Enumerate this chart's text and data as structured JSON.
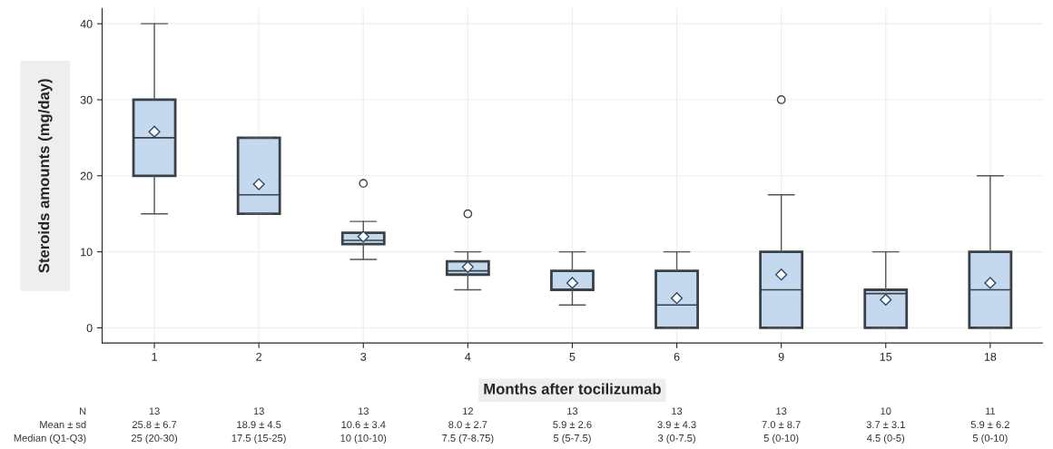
{
  "chart_data": {
    "type": "box",
    "xlabel": "Months after tocilizumab",
    "ylabel": "Steroids amounts (mg/day)",
    "categories": [
      "1",
      "2",
      "3",
      "4",
      "5",
      "6",
      "9",
      "15",
      "18"
    ],
    "color": "#c5d9ee",
    "boxes": [
      {
        "low": 15,
        "q1": 20,
        "median": 25,
        "q3": 30,
        "high": 40,
        "mean": 25.8
      },
      {
        "low": 15,
        "q1": 15,
        "median": 17.5,
        "q3": 25,
        "high": 25,
        "mean": 18.9
      },
      {
        "low": 9,
        "q1": 11,
        "median": 11.5,
        "q3": 12.5,
        "high": 14,
        "mean": 12,
        "outliers": [
          19
        ]
      },
      {
        "low": 5,
        "q1": 7,
        "median": 7.5,
        "q3": 8.75,
        "high": 10,
        "mean": 8,
        "outliers": [
          15
        ]
      },
      {
        "low": 3,
        "q1": 5,
        "median": 5,
        "q3": 7.5,
        "high": 10,
        "mean": 5.9
      },
      {
        "low": 0,
        "q1": 0,
        "median": 3,
        "q3": 7.5,
        "high": 10,
        "mean": 3.9
      },
      {
        "low": 0,
        "q1": 0,
        "median": 5,
        "q3": 10,
        "high": 17.5,
        "mean": 7.0,
        "outliers": [
          30
        ]
      },
      {
        "low": 0,
        "q1": 0,
        "median": 4.5,
        "q3": 5,
        "high": 10,
        "mean": 3.7
      },
      {
        "low": 0,
        "q1": 0,
        "median": 5,
        "q3": 10,
        "high": 20,
        "mean": 5.9
      }
    ],
    "ylim": [
      -2,
      42
    ],
    "yticks": [
      0,
      10,
      20,
      30,
      40
    ],
    "grid": true,
    "annotations": [
      "N",
      "13",
      "13",
      "13",
      "12",
      "13",
      "13",
      "13",
      "10",
      "11",
      "Mean ± sd",
      "25.8 ± 6.7",
      "18.9 ± 4.5",
      "10.6 ± 3.4",
      "8.0 ± 2.7",
      "5.9 ± 2.6",
      "3.9 ± 4.3",
      "7.0 ± 8.7",
      "3.7 ± 3.1",
      "5.9 ± 6.2",
      "Median (Q1-Q3)",
      "25 (20-30)",
      "17.5 (15-25)",
      "10 (10-10)",
      "7.5 (7-8.75)",
      "5 (5-7.5)",
      "3 (0-7.5)",
      "5 (0-10)",
      "4.5 (0-5)",
      "5 (0-10)"
    ]
  }
}
